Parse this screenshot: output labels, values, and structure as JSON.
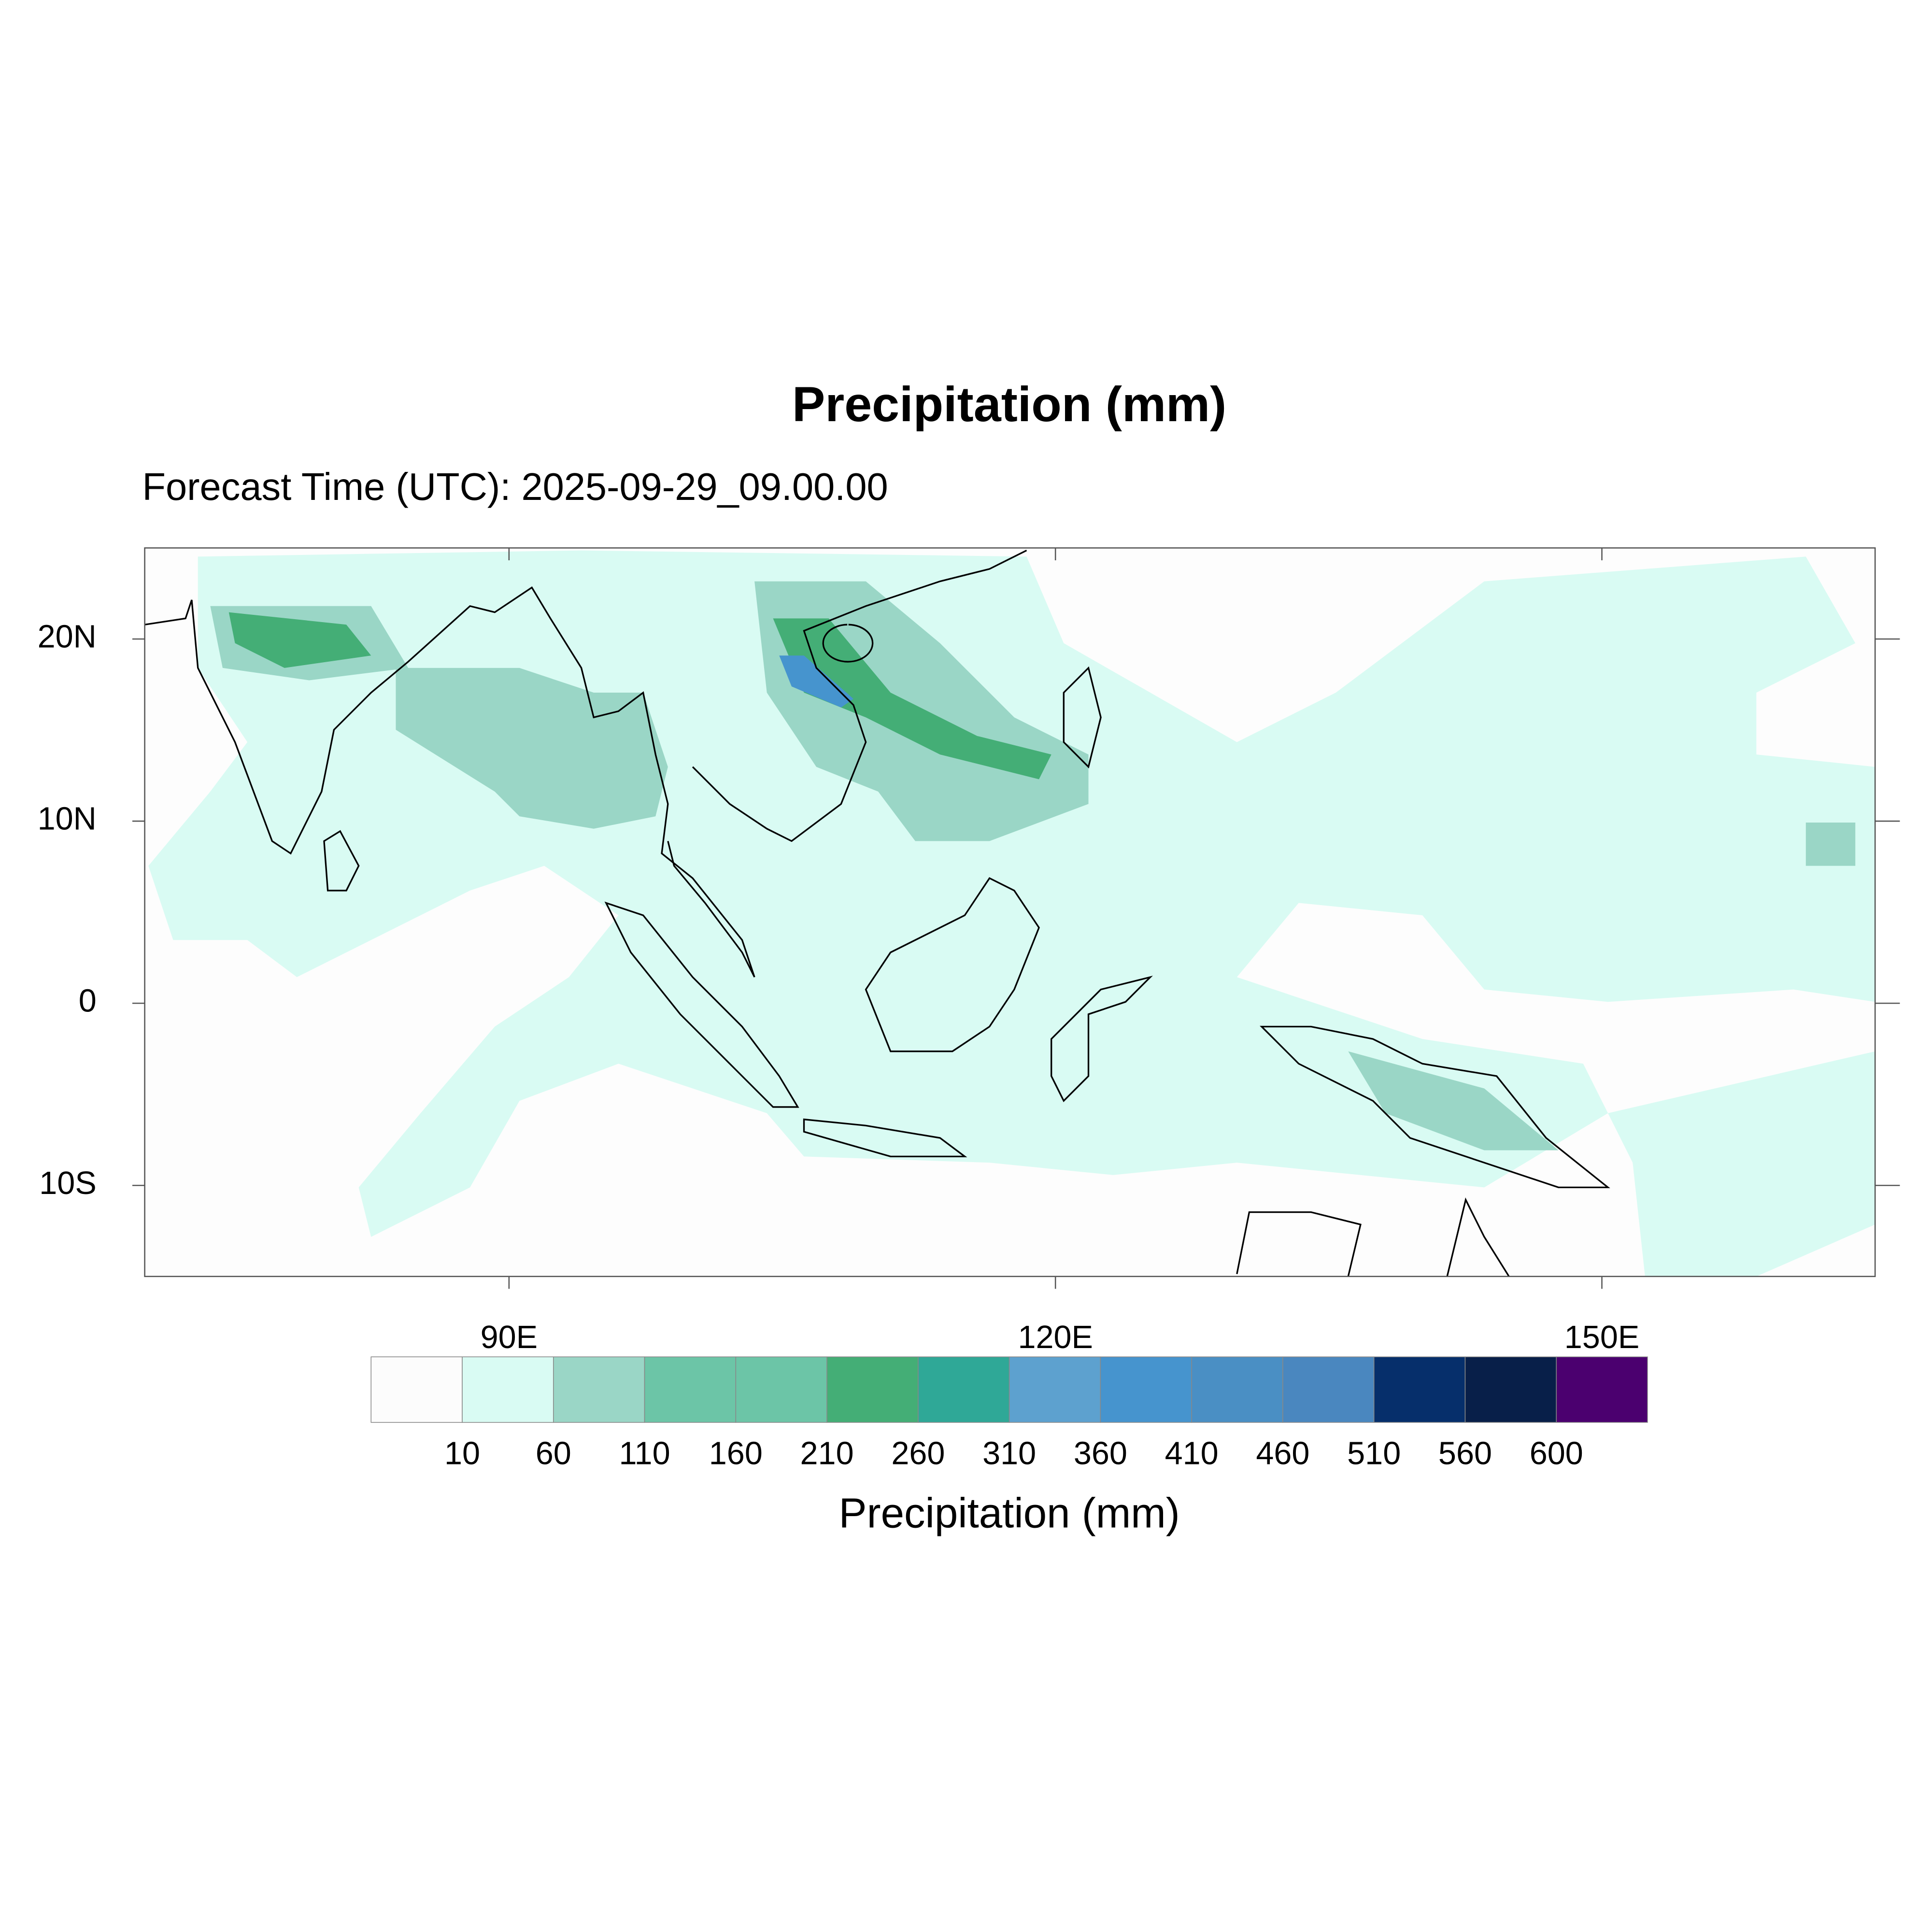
{
  "chart_data": {
    "type": "map",
    "title": "Precipitation (mm)",
    "subtitle": "Forecast Time (UTC): 2025-09-29_09.00.00",
    "xlim": [
      70,
      165
    ],
    "ylim": [
      -15,
      25
    ],
    "xticks": [
      {
        "value": 90,
        "label": "90E"
      },
      {
        "value": 120,
        "label": "120E"
      },
      {
        "value": 150,
        "label": "150E"
      }
    ],
    "yticks": [
      {
        "value": -10,
        "label": "10S"
      },
      0,
      {
        "value": 10,
        "label": "10N"
      },
      {
        "value": 20,
        "label": "20N"
      }
    ],
    "colorbar": {
      "label": "Precipitation (mm)",
      "levels": [
        10,
        60,
        110,
        160,
        210,
        260,
        310,
        360,
        410,
        460,
        510,
        560,
        600
      ],
      "colors": [
        "#fcfcfc",
        "#d9fbf3",
        "#9ad6c6",
        "#6cc5a7",
        "#6cc5a7",
        "#44ae76",
        "#2fa897",
        "#5da1cf",
        "#4694ce",
        "#4a8fc4",
        "#4a87bf",
        "#062f6b",
        "#081f49",
        "#4b006f"
      ]
    }
  }
}
